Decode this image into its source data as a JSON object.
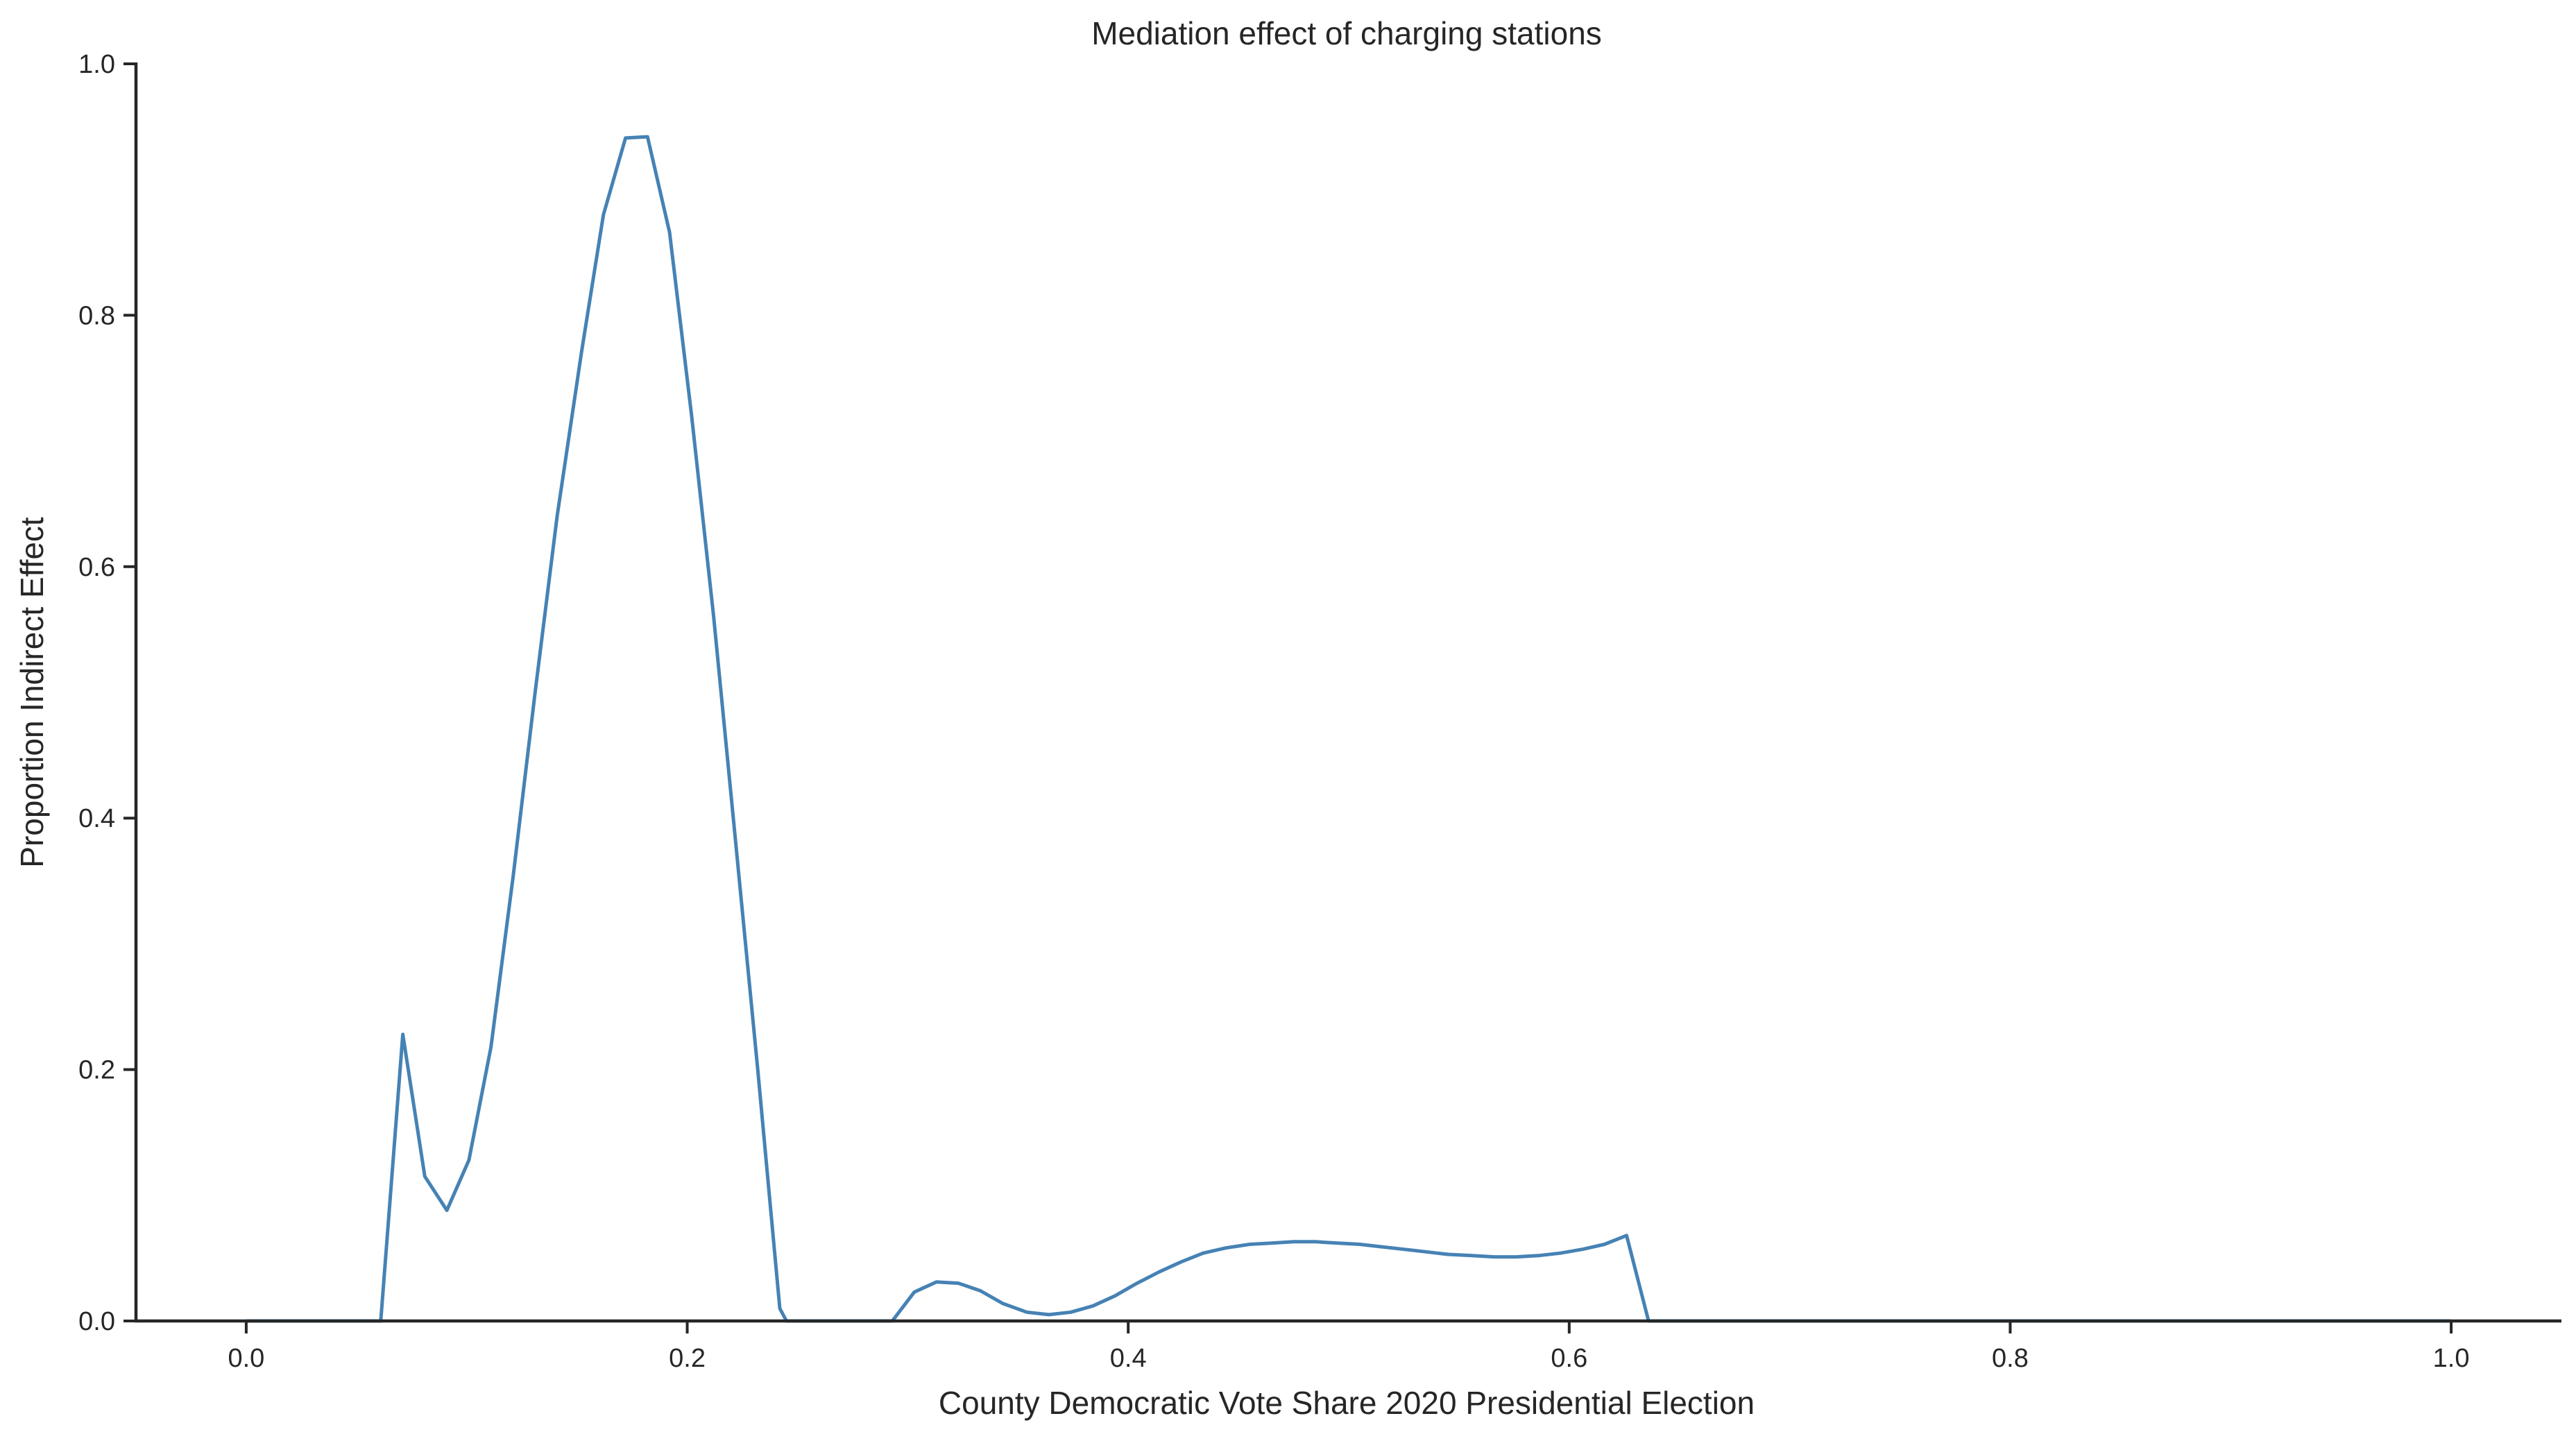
{
  "chart_data": {
    "type": "line",
    "title": "Mediation effect of charging stations",
    "xlabel": "County Democratic Vote Share 2020 Presidential Election",
    "ylabel": "Proportion Indirect Effect",
    "xlim": [
      -0.05,
      1.05
    ],
    "ylim": [
      0.0,
      1.0
    ],
    "xticks": [
      0.0,
      0.2,
      0.4,
      0.6,
      0.8,
      1.0
    ],
    "xtick_labels": [
      "0.0",
      "0.2",
      "0.4",
      "0.6",
      "0.8",
      "1.0"
    ],
    "yticks": [
      0.0,
      0.2,
      0.4,
      0.6,
      0.8,
      1.0
    ],
    "ytick_labels": [
      "0.0",
      "0.2",
      "0.4",
      "0.6",
      "0.8",
      "1.0"
    ],
    "grid": false,
    "spines": "left-bottom",
    "color": "#4682b4",
    "series": [
      {
        "x": [
          0.0,
          0.061,
          0.071,
          0.081,
          0.091,
          0.101,
          0.111,
          0.121,
          0.131,
          0.141,
          0.152,
          0.162,
          0.172,
          0.182,
          0.192,
          0.202,
          0.212,
          0.222,
          0.232,
          0.242,
          0.245,
          0.293,
          0.303,
          0.313,
          0.323,
          0.333,
          0.343,
          0.354,
          0.364,
          0.374,
          0.384,
          0.394,
          0.404,
          0.414,
          0.424,
          0.434,
          0.444,
          0.455,
          0.465,
          0.475,
          0.485,
          0.495,
          0.505,
          0.515,
          0.525,
          0.535,
          0.545,
          0.556,
          0.566,
          0.576,
          0.586,
          0.596,
          0.606,
          0.616,
          0.626,
          0.636,
          0.646,
          0.7,
          0.8,
          0.9,
          1.0
        ],
        "y": [
          0.0,
          0.0,
          0.228,
          0.115,
          0.088,
          0.128,
          0.218,
          0.353,
          0.5,
          0.64,
          0.77,
          0.88,
          0.941,
          0.942,
          0.866,
          0.72,
          0.56,
          0.38,
          0.2,
          0.01,
          0.0,
          0.0,
          0.023,
          0.031,
          0.03,
          0.024,
          0.014,
          0.007,
          0.005,
          0.007,
          0.012,
          0.02,
          0.03,
          0.039,
          0.047,
          0.054,
          0.058,
          0.061,
          0.062,
          0.063,
          0.063,
          0.062,
          0.061,
          0.059,
          0.057,
          0.055,
          0.053,
          0.052,
          0.051,
          0.051,
          0.052,
          0.054,
          0.057,
          0.061,
          0.068,
          0.0,
          0.0,
          0.0,
          0.0,
          0.0,
          0.0
        ]
      }
    ]
  }
}
